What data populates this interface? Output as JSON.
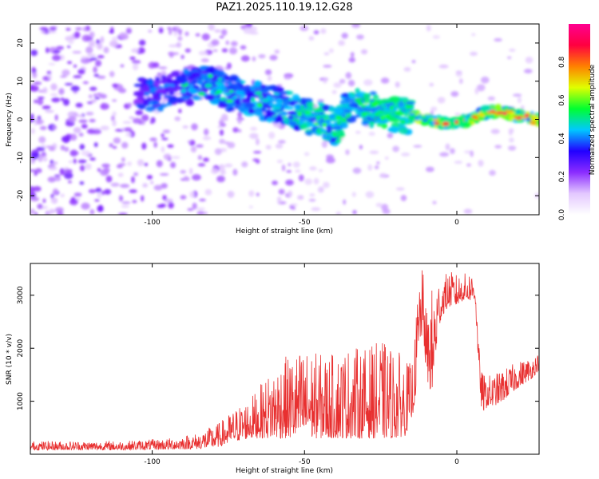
{
  "title": "PAZ1.2025.110.19.12.G28",
  "chart_data": [
    {
      "type": "heatmap",
      "xlabel": "Height of straight line (km)",
      "ylabel": "Frequency (Hz)",
      "xlim": [
        -140,
        27
      ],
      "ylim": [
        -25,
        25
      ],
      "xticks": [
        -100,
        -50,
        0
      ],
      "yticks": [
        -20,
        -10,
        0,
        10,
        20
      ],
      "colorbar": {
        "label": "Normalized spectral amplitude",
        "range": [
          0,
          1
        ],
        "ticks": [
          "0.0",
          "0.2",
          "0.4",
          "0.6",
          "0.8"
        ],
        "colors": [
          "#ffffff",
          "#e3c8ff",
          "#8b2cff",
          "#2200ff",
          "#00c8ff",
          "#00ff30",
          "#e0ff00",
          "#ff8000",
          "#ff0040",
          "#ff0090"
        ]
      },
      "ridge": {
        "x": [
          -100,
          -90,
          -85,
          -80,
          -75,
          -70,
          -65,
          -60,
          -55,
          -50,
          -45,
          -40,
          -35,
          -30,
          -25,
          -20,
          -15,
          -10,
          -5,
          0,
          5,
          10,
          15,
          20,
          27
        ],
        "y": [
          6,
          8,
          9,
          9,
          7,
          6,
          5,
          4,
          3,
          1,
          0,
          -2,
          4,
          3,
          2,
          1,
          1,
          0,
          -1,
          -1,
          0,
          2,
          2,
          1,
          0
        ]
      }
    },
    {
      "type": "line",
      "xlabel": "Height of straight line (km)",
      "ylabel": "SNR (10 * v/v)",
      "xlim": [
        -140,
        27
      ],
      "ylim": [
        0,
        3600
      ],
      "xticks": [
        -100,
        -50,
        0
      ],
      "yticks": [
        1000,
        2000,
        3000
      ],
      "color": "#e83030",
      "envelope": {
        "x": [
          -140,
          -110,
          -95,
          -85,
          -78,
          -72,
          -68,
          -62,
          -58,
          -54,
          -50,
          -45,
          -40,
          -35,
          -30,
          -25,
          -20,
          -17,
          -15,
          -14,
          -13,
          -12,
          -11,
          -10,
          -8,
          -6,
          -4,
          -2,
          0,
          2,
          4,
          6,
          7,
          8,
          9,
          10,
          12,
          15,
          20,
          25,
          27
        ],
        "lo": [
          80,
          80,
          90,
          100,
          140,
          250,
          300,
          300,
          300,
          300,
          300,
          300,
          300,
          300,
          300,
          300,
          300,
          350,
          600,
          900,
          1400,
          2100,
          2300,
          1400,
          1100,
          2400,
          2700,
          2800,
          2800,
          2900,
          2900,
          2900,
          1800,
          900,
          800,
          900,
          900,
          1000,
          1250,
          1450,
          1600
        ],
        "hi": [
          250,
          250,
          300,
          400,
          600,
          900,
          1050,
          1500,
          1800,
          1900,
          2000,
          1900,
          1900,
          2050,
          2000,
          2150,
          2000,
          1800,
          1700,
          2000,
          3000,
          3600,
          3400,
          2700,
          3200,
          3300,
          3400,
          3450,
          3400,
          3400,
          3450,
          3450,
          2200,
          1600,
          1500,
          1500,
          1500,
          1600,
          1750,
          1850,
          1900
        ]
      }
    }
  ]
}
